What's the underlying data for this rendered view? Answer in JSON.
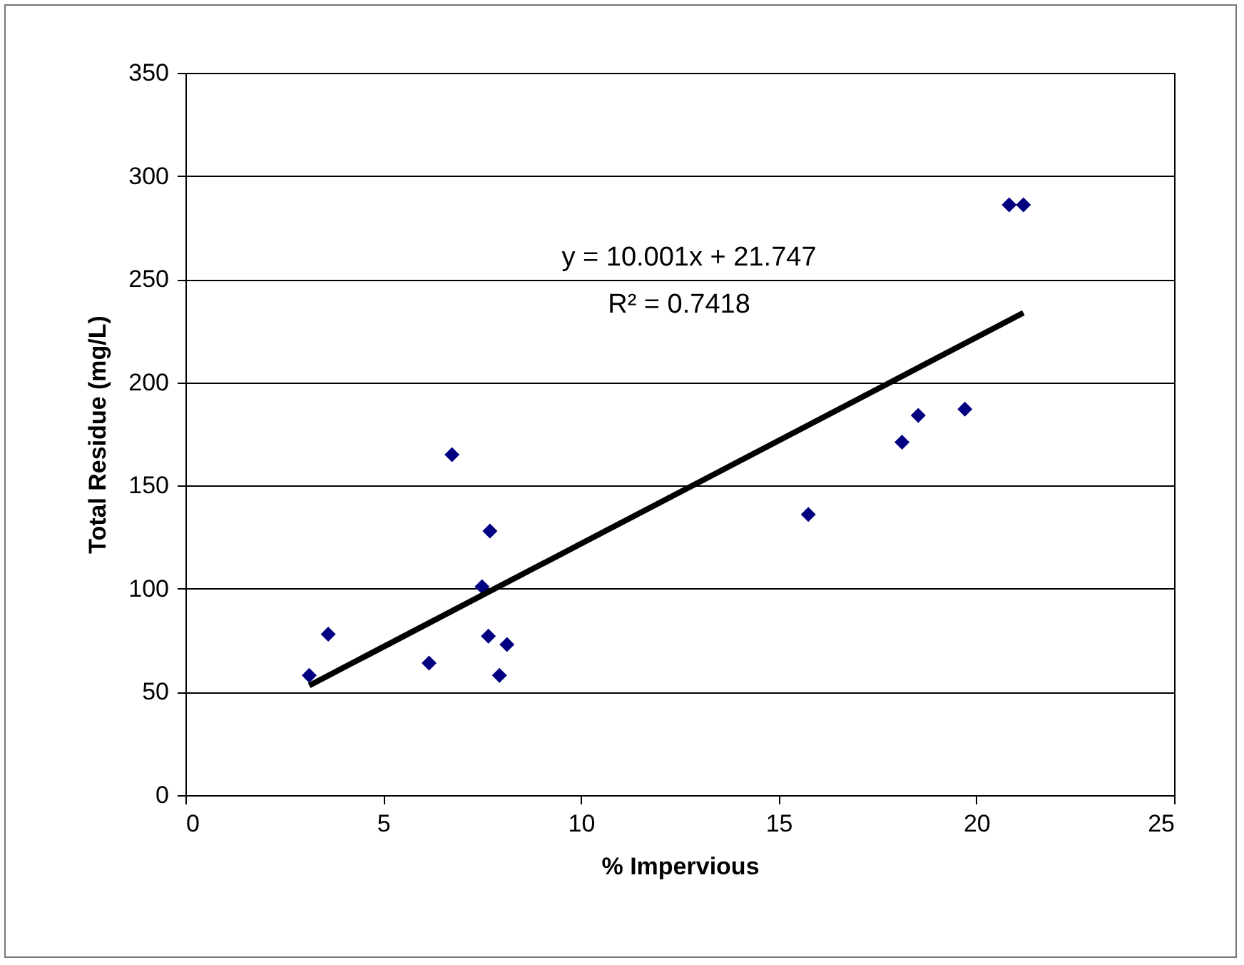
{
  "chart_data": {
    "type": "scatter",
    "xlabel": "% Impervious",
    "ylabel": "Total Residue (mg/L)",
    "xlim": [
      0,
      25
    ],
    "xticks": [
      0,
      5,
      10,
      15,
      20,
      25
    ],
    "ylim": [
      0,
      350
    ],
    "yticks": [
      0,
      50,
      100,
      150,
      200,
      250,
      300,
      350
    ],
    "grid": "y",
    "series": [
      {
        "type": "scatter",
        "marker": "diamond",
        "color": "#000080",
        "x": [
          3.13,
          3.61,
          6.16,
          6.74,
          7.5,
          7.66,
          7.7,
          7.94,
          8.13,
          15.75,
          18.12,
          18.53,
          19.71,
          20.83,
          21.19
        ],
        "values": [
          58,
          78,
          64,
          165,
          101,
          77,
          128,
          58,
          73,
          136,
          171,
          184,
          187,
          286,
          286
        ]
      },
      {
        "type": "line",
        "marker": "none",
        "color": "#000000",
        "x": [
          3.13,
          21.19
        ],
        "values": [
          53.1,
          233.7
        ]
      }
    ],
    "annotations": [
      "y = 10.001x + 21.747",
      "R² = 0.7418"
    ]
  }
}
